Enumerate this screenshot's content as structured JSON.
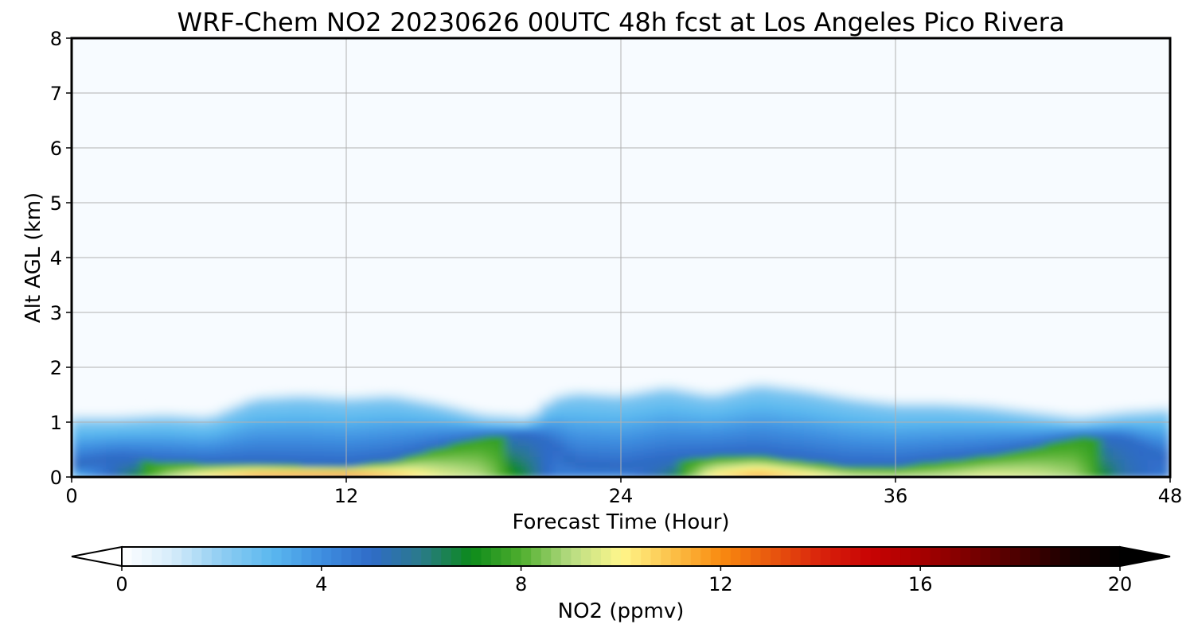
{
  "chart_data": {
    "type": "heatmap",
    "title": "WRF-Chem NO2  20230626 00UTC 48h fcst at Los Angeles Pico Rivera",
    "xlabel": "Forecast Time (Hour)",
    "ylabel": "Alt AGL (km)",
    "xlim": [
      0,
      48
    ],
    "ylim": [
      0,
      8
    ],
    "xticks": [
      "0",
      "12",
      "24",
      "36",
      "48"
    ],
    "yticks": [
      "0",
      "1",
      "2",
      "3",
      "4",
      "5",
      "6",
      "7",
      "8"
    ],
    "grid": true,
    "colorbar": {
      "label": "NO2  (ppmv)",
      "range": [
        0,
        20
      ],
      "ticks": [
        "0",
        "4",
        "8",
        "12",
        "16",
        "20"
      ],
      "extend": "both",
      "colors": [
        [
          0,
          "#ffffff"
        ],
        [
          1,
          "#d6ecfa"
        ],
        [
          2,
          "#8fcdf2"
        ],
        [
          3,
          "#5bb8ef"
        ],
        [
          4,
          "#3f8fe0"
        ],
        [
          5,
          "#2f6bc8"
        ],
        [
          6,
          "#2a7a8a"
        ],
        [
          7,
          "#0c8a1a"
        ],
        [
          8,
          "#4fae2e"
        ],
        [
          9,
          "#b7dc82"
        ],
        [
          10,
          "#fff78c"
        ],
        [
          11,
          "#fcc24a"
        ],
        [
          12,
          "#f98b10"
        ],
        [
          13,
          "#e8580e"
        ],
        [
          14,
          "#d9230c"
        ],
        [
          15,
          "#c80303"
        ],
        [
          16,
          "#a80000"
        ],
        [
          17,
          "#7a0000"
        ],
        [
          18,
          "#4a0000"
        ],
        [
          19,
          "#1a0000"
        ],
        [
          20,
          "#000000"
        ]
      ]
    },
    "mixing_layer": {
      "hours": [
        0,
        2,
        4,
        6,
        8,
        10,
        12,
        14,
        16,
        18,
        20,
        21,
        22,
        24,
        26,
        28,
        30,
        32,
        34,
        36,
        38,
        40,
        42,
        44,
        46,
        48
      ],
      "top_km": [
        0.95,
        0.95,
        1.0,
        0.95,
        1.3,
        1.35,
        1.3,
        1.35,
        1.2,
        1.0,
        0.95,
        1.3,
        1.4,
        1.35,
        1.5,
        1.35,
        1.55,
        1.45,
        1.3,
        1.2,
        1.2,
        1.15,
        1.05,
        0.95,
        1.05,
        1.1
      ],
      "surface_no2_ppmv": [
        2.5,
        5.5,
        8.8,
        10.8,
        12.3,
        12.8,
        13.2,
        11.5,
        9.8,
        9.0,
        6.5,
        4.5,
        4.2,
        4.0,
        6.0,
        10.5,
        11.8,
        10.8,
        9.5,
        9.2,
        9.3,
        9.8,
        9.5,
        8.8,
        5.5,
        4.5
      ],
      "plume_depth_km": [
        0.2,
        0.35,
        0.28,
        0.25,
        0.25,
        0.22,
        0.2,
        0.3,
        0.55,
        0.75,
        0.8,
        0.6,
        0.2,
        0.15,
        0.3,
        0.38,
        0.4,
        0.3,
        0.2,
        0.2,
        0.3,
        0.4,
        0.55,
        0.75,
        0.7,
        0.3
      ]
    }
  }
}
